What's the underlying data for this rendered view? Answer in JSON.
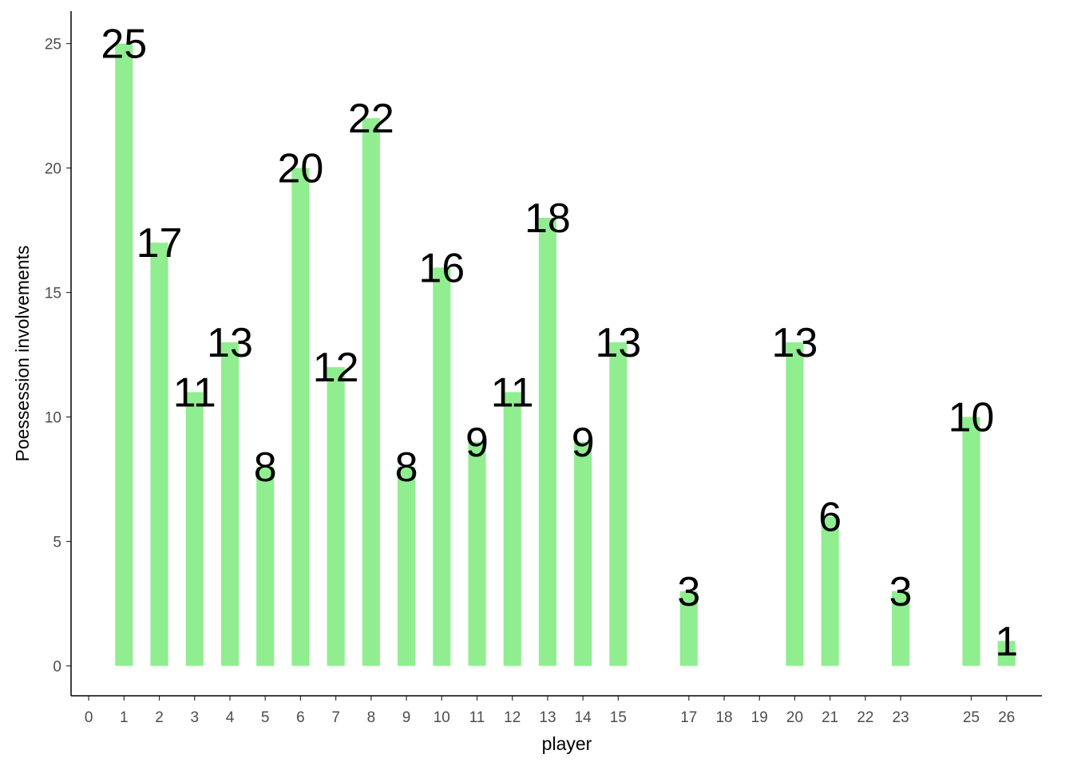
{
  "chart_data": {
    "type": "bar",
    "x_label": "player",
    "y_label": "Poessession involvements",
    "x": [
      1,
      2,
      3,
      4,
      5,
      6,
      7,
      8,
      9,
      10,
      11,
      12,
      13,
      14,
      15,
      17,
      20,
      21,
      23,
      25,
      26
    ],
    "values": [
      25,
      17,
      11,
      13,
      8,
      20,
      12,
      22,
      8,
      16,
      9,
      11,
      18,
      9,
      13,
      3,
      13,
      6,
      3,
      10,
      1
    ],
    "color": "#90ee90",
    "xlim": [
      -0.5,
      27
    ],
    "ylim": [
      -1.2,
      26.3
    ],
    "xticks": [
      0,
      1,
      2,
      3,
      4,
      5,
      6,
      7,
      8,
      9,
      10,
      11,
      12,
      13,
      14,
      15,
      17,
      18,
      19,
      20,
      21,
      22,
      23,
      25,
      26
    ],
    "yticks": [
      0,
      5,
      10,
      15,
      20,
      25
    ],
    "grid": false
  }
}
